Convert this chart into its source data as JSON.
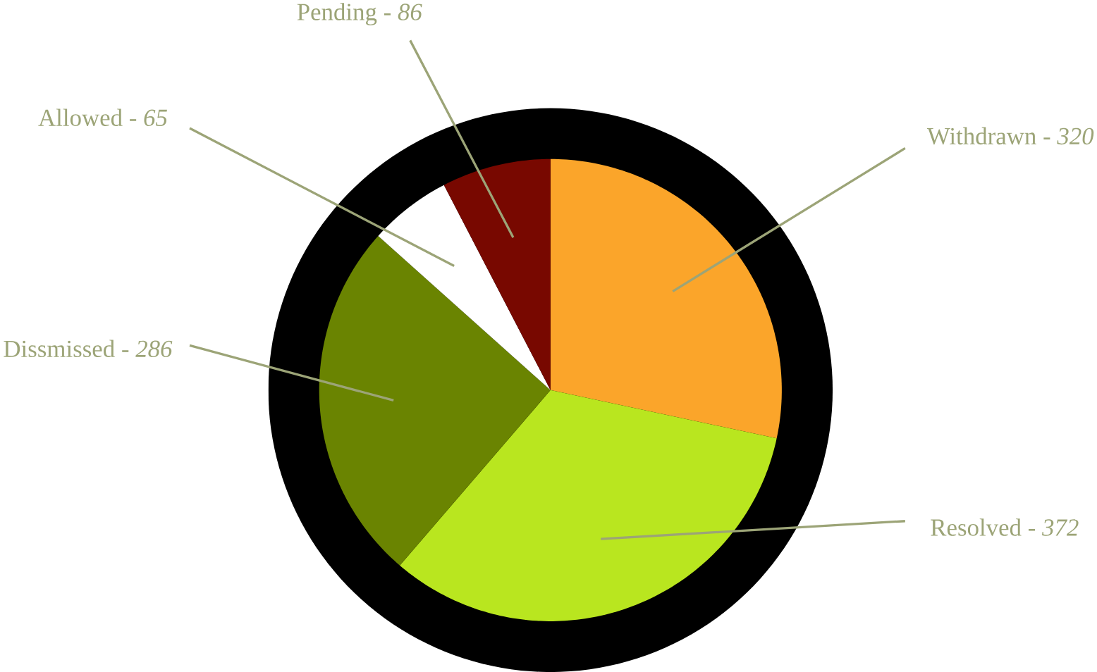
{
  "chart_data": {
    "type": "pie",
    "categories": [
      "Withdrawn",
      "Resolved",
      "Dissmissed",
      "Allowed",
      "Pending"
    ],
    "values": [
      320,
      372,
      286,
      65,
      86
    ],
    "colors": [
      "#fba52a",
      "#b9e61f",
      "#6a8401",
      "#ffffff",
      "#780800"
    ],
    "value_labels": [
      "- *320*",
      "- *372*",
      "- *286*",
      "- *65*",
      "- *86*"
    ]
  }
}
